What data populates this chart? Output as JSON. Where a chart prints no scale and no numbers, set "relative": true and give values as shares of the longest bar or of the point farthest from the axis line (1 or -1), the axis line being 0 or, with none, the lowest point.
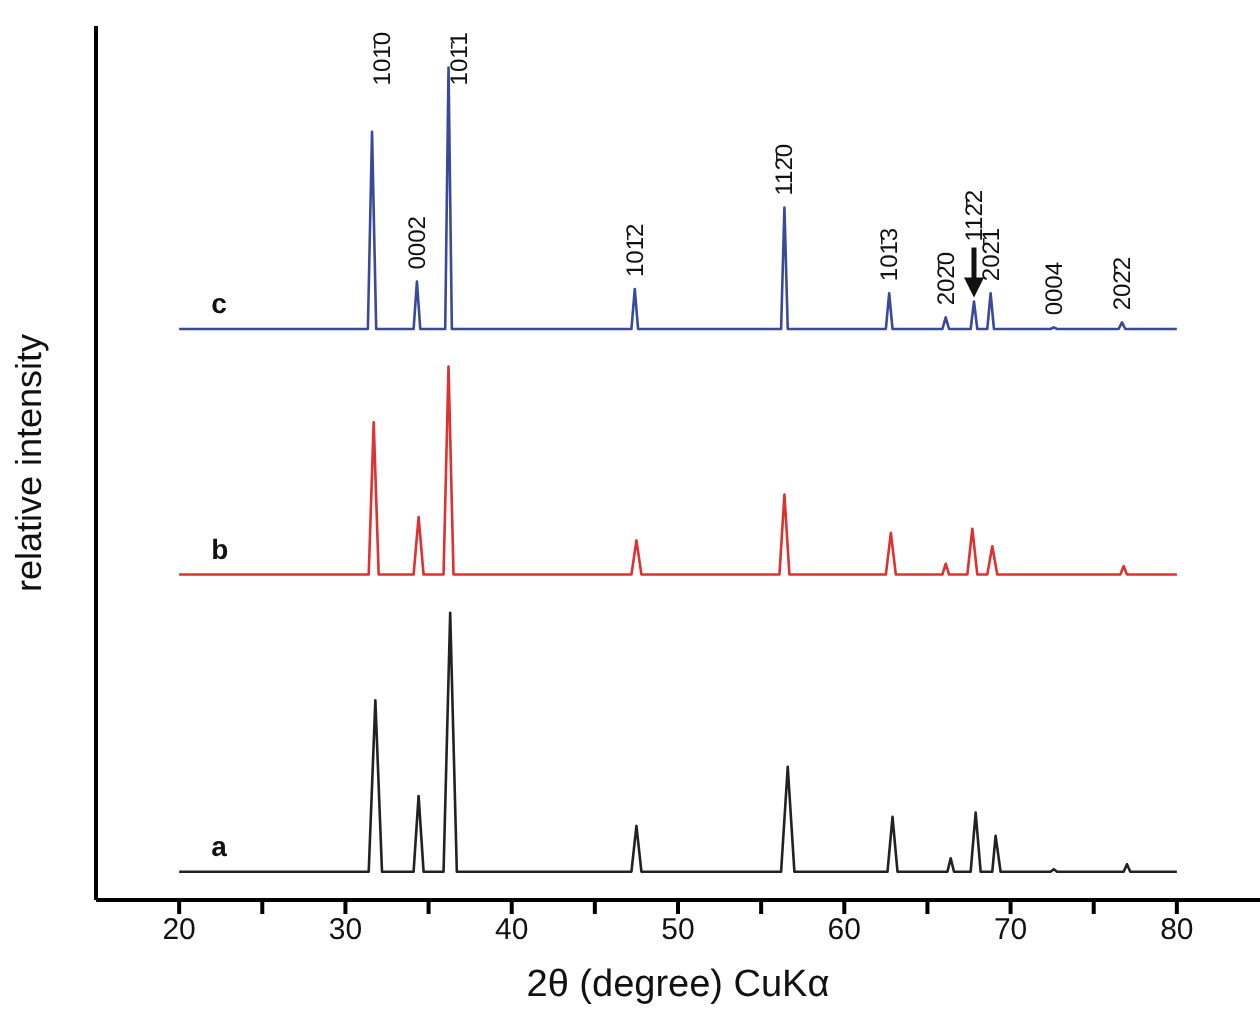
{
  "chart_data": {
    "type": "line",
    "relative": true,
    "xlabel": "2θ (degree) CuKα",
    "ylabel": "relative intensity",
    "xlim": [
      15,
      85
    ],
    "xticks": [
      20,
      {
        "value": 25,
        "label": null
      },
      30,
      {
        "value": 35,
        "label": null
      },
      40,
      {
        "value": 45,
        "label": null
      },
      50,
      {
        "value": 55,
        "label": null
      },
      60,
      {
        "value": 65,
        "label": null
      },
      70,
      {
        "value": 75,
        "label": null
      },
      80
    ],
    "grid": false,
    "legend": false,
    "marker": "none",
    "line_style": "solid",
    "series": [
      {
        "name": "a",
        "color": "#222222",
        "x": [
          20,
          31.4,
          31.8,
          32.2,
          34.1,
          34.4,
          34.7,
          35.9,
          36.3,
          36.7,
          47.2,
          47.5,
          47.8,
          56.2,
          56.6,
          57.0,
          62.6,
          62.9,
          63.2,
          66.2,
          66.4,
          66.6,
          67.6,
          67.9,
          68.2,
          68.9,
          69.1,
          69.4,
          72.4,
          72.6,
          72.8,
          76.8,
          77.0,
          77.2,
          80
        ],
        "values": [
          0.034,
          0.034,
          0.24,
          0.034,
          0.034,
          0.125,
          0.034,
          0.034,
          0.345,
          0.034,
          0.034,
          0.089,
          0.034,
          0.034,
          0.16,
          0.034,
          0.034,
          0.1,
          0.034,
          0.034,
          0.05,
          0.034,
          0.034,
          0.105,
          0.034,
          0.034,
          0.077,
          0.034,
          0.034,
          0.037,
          0.034,
          0.034,
          0.043,
          0.034,
          0.034
        ]
      },
      {
        "name": "b",
        "color": "#e03030",
        "x": [
          20,
          31.4,
          31.7,
          32.0,
          34.1,
          34.4,
          34.7,
          35.9,
          36.2,
          36.5,
          47.2,
          47.5,
          47.8,
          56.1,
          56.4,
          56.7,
          62.5,
          62.8,
          63.1,
          65.9,
          66.1,
          66.3,
          67.4,
          67.7,
          68.0,
          68.6,
          68.9,
          69.2,
          76.6,
          76.8,
          77.0,
          80
        ],
        "values": [
          0.391,
          0.391,
          0.574,
          0.391,
          0.391,
          0.46,
          0.391,
          0.391,
          0.641,
          0.391,
          0.391,
          0.432,
          0.391,
          0.391,
          0.487,
          0.391,
          0.391,
          0.441,
          0.391,
          0.391,
          0.404,
          0.391,
          0.391,
          0.446,
          0.391,
          0.391,
          0.425,
          0.391,
          0.391,
          0.401,
          0.391,
          0.391
        ]
      },
      {
        "name": "c",
        "color": "#3a4a9a",
        "x": [
          20,
          31.35,
          31.6,
          31.85,
          34.1,
          34.3,
          34.5,
          36.0,
          36.2,
          36.4,
          47.2,
          47.4,
          47.6,
          56.2,
          56.4,
          56.6,
          62.5,
          62.7,
          62.9,
          65.9,
          66.1,
          66.3,
          67.6,
          67.8,
          68.0,
          68.6,
          68.8,
          69.0,
          72.4,
          72.6,
          72.8,
          76.5,
          76.7,
          76.9,
          80
        ],
        "values": [
          0.686,
          0.686,
          0.923,
          0.686,
          0.686,
          0.743,
          0.686,
          0.686,
          1.0,
          0.686,
          0.686,
          0.734,
          0.686,
          0.686,
          0.832,
          0.686,
          0.686,
          0.729,
          0.686,
          0.686,
          0.7,
          0.686,
          0.686,
          0.719,
          0.686,
          0.686,
          0.729,
          0.686,
          0.686,
          0.688,
          0.686,
          0.686,
          0.694,
          0.686,
          0.686
        ]
      }
    ],
    "annotations": [
      {
        "text": "101̄0",
        "x": 31.6,
        "y": 0.923
      },
      {
        "text": "0002",
        "x": 34.3,
        "y": 0.743
      },
      {
        "text": "101̄1",
        "x": 36.2,
        "y": 1.0
      },
      {
        "text": "101̄2",
        "x": 47.4,
        "y": 0.734
      },
      {
        "text": "112̄0",
        "x": 56.4,
        "y": 0.832
      },
      {
        "text": "101̄3",
        "x": 62.7,
        "y": 0.729
      },
      {
        "text": "202̄0",
        "x": 66.1,
        "y": 0.7
      },
      {
        "text": "112̄2",
        "x": 67.8,
        "y": 0.719
      },
      {
        "text": "202̄1",
        "x": 68.8,
        "y": 0.729
      },
      {
        "text": "0004",
        "x": 72.6,
        "y": 0.688
      },
      {
        "text": "202̄2",
        "x": 76.7,
        "y": 0.694
      }
    ]
  }
}
